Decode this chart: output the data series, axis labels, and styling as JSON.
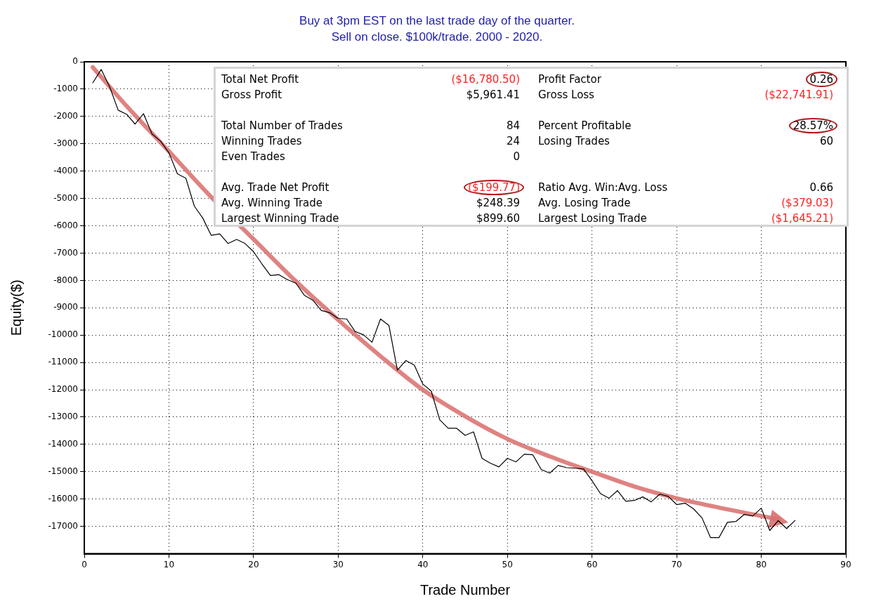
{
  "chart_data": {
    "type": "line",
    "title": "Buy at 3pm EST on the last trade day of the quarter.",
    "subtitle": "Sell on close. $100k/trade. 2000 - 2020.",
    "xlabel": "Trade Number",
    "ylabel": "Equity($)",
    "x": [
      1,
      2,
      3,
      4,
      5,
      6,
      7,
      8,
      9,
      10,
      11,
      12,
      13,
      14,
      15,
      16,
      17,
      18,
      19,
      20,
      21,
      22,
      23,
      24,
      25,
      26,
      27,
      28,
      29,
      30,
      31,
      32,
      33,
      34,
      35,
      36,
      37,
      38,
      39,
      40,
      41,
      42,
      43,
      44,
      45,
      46,
      47,
      48,
      49,
      50,
      51,
      52,
      53,
      54,
      55,
      56,
      57,
      58,
      59,
      60,
      61,
      62,
      63,
      64,
      65,
      66,
      67,
      68,
      69,
      70,
      71,
      72,
      73,
      74,
      75,
      76,
      77,
      78,
      79,
      80,
      81,
      82,
      83,
      84
    ],
    "series": [
      {
        "color": "#000000",
        "values": [
          -770,
          -280,
          -920,
          -1770,
          -1920,
          -2280,
          -1900,
          -2640,
          -2900,
          -3330,
          -4100,
          -4260,
          -5280,
          -5720,
          -6350,
          -6300,
          -6650,
          -6500,
          -6650,
          -6950,
          -7400,
          -7820,
          -7790,
          -7970,
          -8100,
          -8540,
          -8720,
          -9100,
          -9180,
          -9390,
          -9410,
          -9870,
          -9990,
          -10260,
          -9410,
          -9650,
          -11280,
          -10930,
          -11100,
          -11790,
          -12050,
          -13100,
          -13410,
          -13410,
          -13670,
          -13540,
          -14510,
          -14690,
          -14820,
          -14510,
          -14640,
          -14360,
          -14380,
          -14920,
          -15050,
          -14770,
          -14850,
          -14870,
          -14900,
          -15330,
          -15800,
          -15970,
          -15690,
          -16080,
          -16050,
          -15920,
          -16100,
          -15820,
          -15900,
          -16200,
          -16150,
          -16360,
          -16690,
          -17410,
          -17410,
          -16850,
          -16820,
          -16560,
          -16620,
          -16330,
          -17150,
          -16790,
          -17080,
          -16780
        ]
      },
      {
        "type": "line",
        "color": "#d9706e",
        "x": [
          1,
          5,
          10,
          15,
          20,
          25,
          30,
          35,
          40,
          45,
          50,
          55,
          60,
          65,
          70,
          75,
          80,
          82
        ],
        "values": [
          -200,
          -1620,
          -3280,
          -4950,
          -6490,
          -8030,
          -9440,
          -10770,
          -12000,
          -12970,
          -13800,
          -14440,
          -15000,
          -15540,
          -15970,
          -16310,
          -16620,
          -16740
        ]
      }
    ],
    "xlim": [
      0,
      90
    ],
    "xticks": [
      0,
      10,
      20,
      30,
      40,
      50,
      60,
      70,
      80,
      90
    ],
    "ylim": [
      -18000,
      0
    ],
    "yticks": [
      0,
      -1000,
      -2000,
      -3000,
      -4000,
      -5000,
      -6000,
      -7000,
      -8000,
      -9000,
      -10000,
      -11000,
      -12000,
      -13000,
      -14000,
      -15000,
      -16000,
      -17000
    ],
    "grid": true,
    "legend": false,
    "marker": "none",
    "line_style": "solid",
    "annotations": [
      "Total Net Profit",
      "($16,780.50)",
      "Profit Factor",
      "0.26",
      "Gross Profit",
      "$5,961.41",
      "Gross Loss",
      "($22,741.91)",
      "Total Number of Trades",
      "84",
      "Percent Profitable",
      "28.57%",
      "Winning Trades",
      "24",
      "Losing Trades",
      "60",
      "Even Trades",
      "0",
      "Avg. Trade Net Profit",
      "($199.77)",
      "Ratio Avg. Win:Avg. Loss",
      "0.66",
      "Avg. Winning Trade",
      "$248.39",
      "Avg. Losing Trade",
      "($379.03)",
      "Largest Winning Trade",
      "$899.60",
      "Largest Losing Trade",
      "($1,645.21)"
    ]
  }
}
